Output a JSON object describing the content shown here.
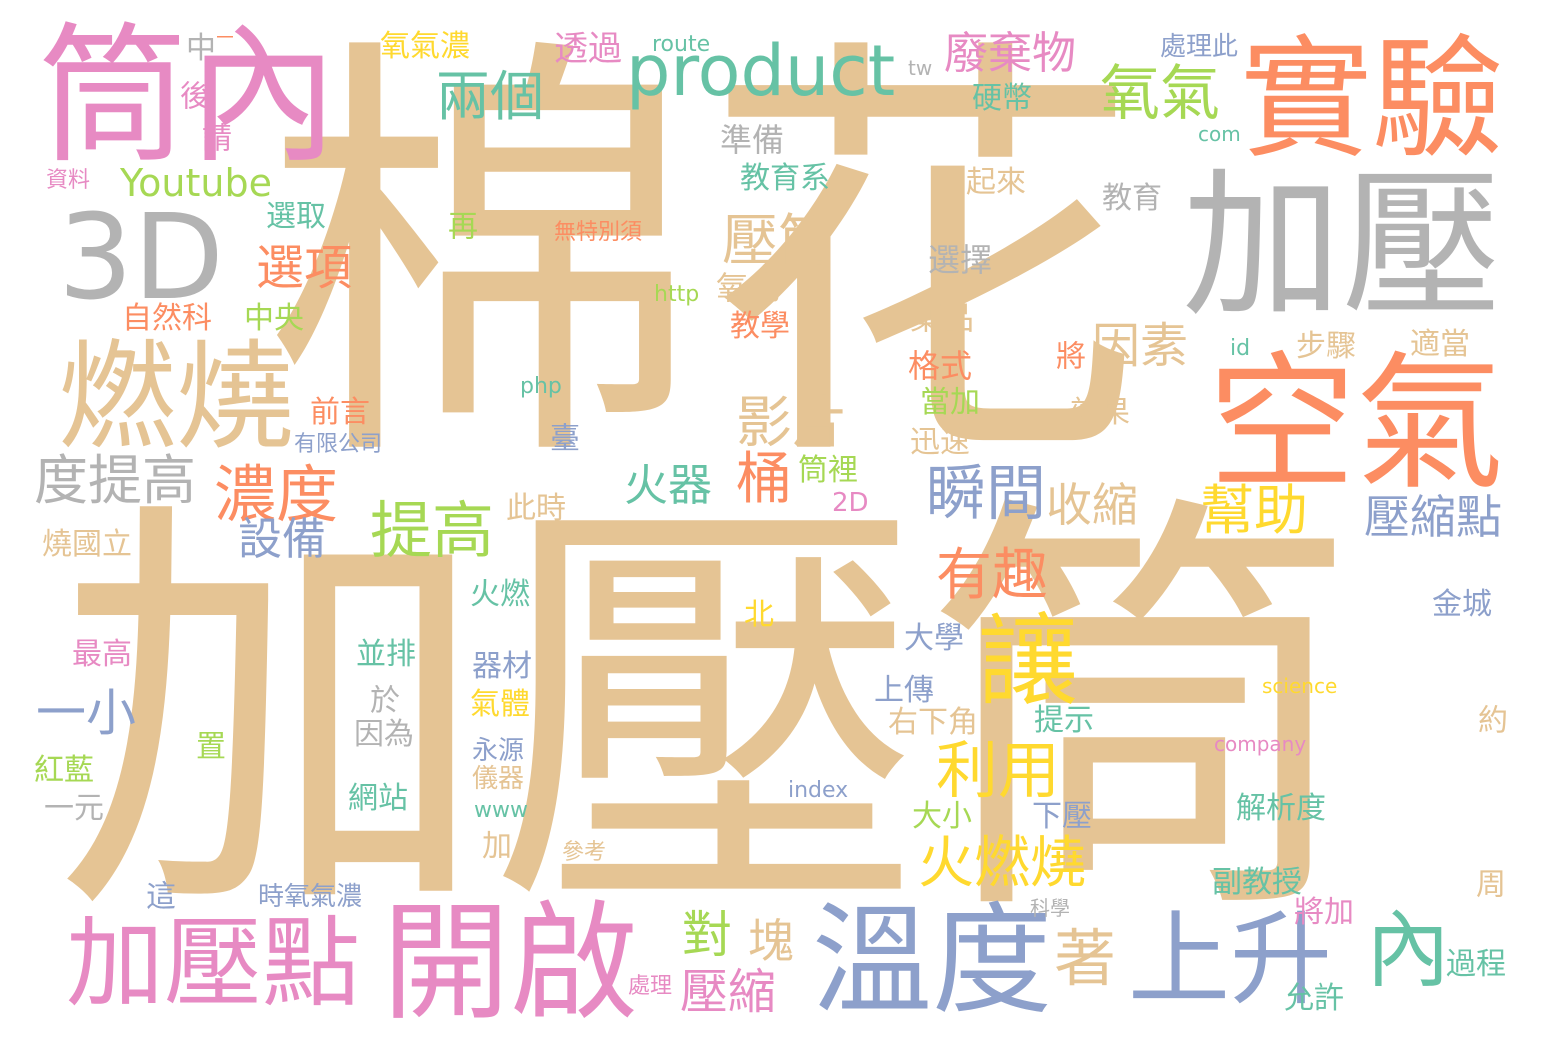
{
  "palette": {
    "tan": "#e5c494",
    "pink": "#e78ac3",
    "gray": "#b3b3b3",
    "orange": "#fc8d62",
    "green": "#66c2a5",
    "blue": "#8da0cb",
    "lime": "#a6d854",
    "yellow": "#ffd92f"
  },
  "words": [
    {
      "id": "w1",
      "text": "棉花",
      "color": "tan"
    },
    {
      "id": "w2",
      "text": "加壓筒",
      "color": "tan"
    },
    {
      "id": "w3",
      "text": "筒內",
      "color": "pink"
    },
    {
      "id": "w4",
      "text": "實驗",
      "color": "orange"
    },
    {
      "id": "w5",
      "text": "加壓",
      "color": "gray"
    },
    {
      "id": "w6",
      "text": "3D",
      "color": "gray"
    },
    {
      "id": "w7",
      "text": "燃燒",
      "color": "tan"
    },
    {
      "id": "w8",
      "text": "空氣",
      "color": "orange"
    },
    {
      "id": "w9",
      "text": "product",
      "color": "green"
    },
    {
      "id": "w10",
      "text": "開啟",
      "color": "pink"
    },
    {
      "id": "w11",
      "text": "溫度",
      "color": "blue"
    },
    {
      "id": "w12",
      "text": "加壓點",
      "color": "pink"
    },
    {
      "id": "w13",
      "text": "上升",
      "color": "blue"
    },
    {
      "id": "w14",
      "text": "內",
      "color": "green"
    },
    {
      "id": "w15",
      "text": "讓",
      "color": "yellow"
    },
    {
      "id": "w16",
      "text": "兩個",
      "color": "green"
    },
    {
      "id": "w17",
      "text": "氧氣",
      "color": "lime"
    },
    {
      "id": "w18",
      "text": "廢棄物",
      "color": "pink"
    },
    {
      "id": "w19",
      "text": "壓筒",
      "color": "tan"
    },
    {
      "id": "w20",
      "text": "Youtube",
      "color": "lime"
    },
    {
      "id": "w21",
      "text": "選項",
      "color": "orange"
    },
    {
      "id": "w22",
      "text": "因素",
      "color": "tan"
    },
    {
      "id": "w23",
      "text": "影片",
      "color": "tan"
    },
    {
      "id": "w24",
      "text": "度提高",
      "color": "gray"
    },
    {
      "id": "w25",
      "text": "濃度",
      "color": "orange"
    },
    {
      "id": "w26",
      "text": "提高",
      "color": "lime"
    },
    {
      "id": "w27",
      "text": "火器",
      "color": "green"
    },
    {
      "id": "w28",
      "text": "桶",
      "color": "orange"
    },
    {
      "id": "w29",
      "text": "瞬間",
      "color": "blue"
    },
    {
      "id": "w30",
      "text": "收縮",
      "color": "tan"
    },
    {
      "id": "w31",
      "text": "幫助",
      "color": "yellow"
    },
    {
      "id": "w32",
      "text": "壓縮點",
      "color": "blue"
    },
    {
      "id": "w33",
      "text": "有趣",
      "color": "orange"
    },
    {
      "id": "w34",
      "text": "設備",
      "color": "blue"
    },
    {
      "id": "w35",
      "text": "利用",
      "color": "yellow"
    },
    {
      "id": "w36",
      "text": "火燃燒",
      "color": "yellow"
    },
    {
      "id": "w37",
      "text": "一小",
      "color": "blue"
    },
    {
      "id": "w38",
      "text": "對",
      "color": "lime"
    },
    {
      "id": "w39",
      "text": "塊",
      "color": "tan"
    },
    {
      "id": "w40",
      "text": "著",
      "color": "tan"
    },
    {
      "id": "w41",
      "text": "壓縮",
      "color": "pink"
    },
    {
      "id": "w42",
      "text": "中",
      "color": "gray"
    },
    {
      "id": "w43",
      "text": "氧氣濃",
      "color": "yellow"
    },
    {
      "id": "w44",
      "text": "透過",
      "color": "pink"
    },
    {
      "id": "w45",
      "text": "route",
      "color": "green"
    },
    {
      "id": "w46",
      "text": "處理此",
      "color": "blue"
    },
    {
      "id": "w47",
      "text": "後",
      "color": "pink"
    },
    {
      "id": "w48",
      "text": "請",
      "color": "pink"
    },
    {
      "id": "w49",
      "text": "tw",
      "color": "gray"
    },
    {
      "id": "w50",
      "text": "硬幣",
      "color": "green"
    },
    {
      "id": "w51",
      "text": "com",
      "color": "green"
    },
    {
      "id": "w52",
      "text": "準備",
      "color": "gray"
    },
    {
      "id": "w53",
      "text": "資料",
      "color": "pink"
    },
    {
      "id": "w54",
      "text": "教育系",
      "color": "green"
    },
    {
      "id": "w55",
      "text": "起來",
      "color": "tan"
    },
    {
      "id": "w56",
      "text": "選取",
      "color": "green"
    },
    {
      "id": "w57",
      "text": "再",
      "color": "lime"
    },
    {
      "id": "w58",
      "text": "無特別須",
      "color": "orange"
    },
    {
      "id": "w59",
      "text": "教育",
      "color": "gray"
    },
    {
      "id": "w60",
      "text": "選擇",
      "color": "gray"
    },
    {
      "id": "w61",
      "text": "http",
      "color": "lime"
    },
    {
      "id": "w62",
      "text": "氧化",
      "color": "tan"
    },
    {
      "id": "w63",
      "text": "自然科",
      "color": "orange"
    },
    {
      "id": "w64",
      "text": "中央",
      "color": "lime"
    },
    {
      "id": "w65",
      "text": "藥品",
      "color": "tan"
    },
    {
      "id": "w66",
      "text": "教學",
      "color": "orange"
    },
    {
      "id": "w67",
      "text": "id",
      "color": "green"
    },
    {
      "id": "w68",
      "text": "步驟",
      "color": "tan"
    },
    {
      "id": "w69",
      "text": "適當",
      "color": "tan"
    },
    {
      "id": "w70",
      "text": "php",
      "color": "green"
    },
    {
      "id": "w71",
      "text": "將",
      "color": "orange"
    },
    {
      "id": "w72",
      "text": "格式",
      "color": "orange"
    },
    {
      "id": "w73",
      "text": "前言",
      "color": "orange"
    },
    {
      "id": "w74",
      "text": "當加",
      "color": "lime"
    },
    {
      "id": "w75",
      "text": "效果",
      "color": "tan"
    },
    {
      "id": "w76",
      "text": "臺",
      "color": "blue"
    },
    {
      "id": "w77",
      "text": "有限公司",
      "color": "blue"
    },
    {
      "id": "w78",
      "text": "迅速",
      "color": "tan"
    },
    {
      "id": "w79",
      "text": "筒裡",
      "color": "lime"
    },
    {
      "id": "w80",
      "text": "2D",
      "color": "pink"
    },
    {
      "id": "w81",
      "text": "此時",
      "color": "tan"
    },
    {
      "id": "w82",
      "text": "燒國立",
      "color": "tan"
    },
    {
      "id": "w83",
      "text": "火燃",
      "color": "green"
    },
    {
      "id": "w84",
      "text": "北",
      "color": "yellow"
    },
    {
      "id": "w85",
      "text": "金城",
      "color": "blue"
    },
    {
      "id": "w86",
      "text": "大學",
      "color": "blue"
    },
    {
      "id": "w87",
      "text": "最高",
      "color": "pink"
    },
    {
      "id": "w88",
      "text": "並排",
      "color": "green"
    },
    {
      "id": "w89",
      "text": "器材",
      "color": "blue"
    },
    {
      "id": "w90",
      "text": "於",
      "color": "gray"
    },
    {
      "id": "w91",
      "text": "氣體",
      "color": "yellow"
    },
    {
      "id": "w92",
      "text": "上傳",
      "color": "blue"
    },
    {
      "id": "w93",
      "text": "science",
      "color": "yellow"
    },
    {
      "id": "w94",
      "text": "提示",
      "color": "green"
    },
    {
      "id": "w95",
      "text": "右下角",
      "color": "tan"
    },
    {
      "id": "w96",
      "text": "約",
      "color": "tan"
    },
    {
      "id": "w97",
      "text": "因為",
      "color": "gray"
    },
    {
      "id": "w98",
      "text": "置",
      "color": "lime"
    },
    {
      "id": "w99",
      "text": "company",
      "color": "pink"
    },
    {
      "id": "w100",
      "text": "紅藍",
      "color": "lime"
    },
    {
      "id": "w101",
      "text": "永源",
      "color": "blue"
    },
    {
      "id": "w102",
      "text": "儀器",
      "color": "tan"
    },
    {
      "id": "w103",
      "text": "index",
      "color": "blue"
    },
    {
      "id": "w104",
      "text": "網站",
      "color": "green"
    },
    {
      "id": "w105",
      "text": "一元",
      "color": "gray"
    },
    {
      "id": "w106",
      "text": "www",
      "color": "green"
    },
    {
      "id": "w107",
      "text": "大小",
      "color": "lime"
    },
    {
      "id": "w108",
      "text": "下壓",
      "color": "blue"
    },
    {
      "id": "w109",
      "text": "解析度",
      "color": "green"
    },
    {
      "id": "w110",
      "text": "加上",
      "color": "tan"
    },
    {
      "id": "w111",
      "text": "參考",
      "color": "tan"
    },
    {
      "id": "w112",
      "text": "副教授",
      "color": "green"
    },
    {
      "id": "w113",
      "text": "這",
      "color": "blue"
    },
    {
      "id": "w114",
      "text": "時氧氣濃",
      "color": "blue"
    },
    {
      "id": "w115",
      "text": "周",
      "color": "tan"
    },
    {
      "id": "w116",
      "text": "科學",
      "color": "gray"
    },
    {
      "id": "w117",
      "text": "將加",
      "color": "pink"
    },
    {
      "id": "w118",
      "text": "過程",
      "color": "green"
    },
    {
      "id": "w119",
      "text": "處理",
      "color": "pink"
    },
    {
      "id": "w120",
      "text": "允許",
      "color": "green"
    },
    {
      "id": "w121",
      "text": "－",
      "color": "orange"
    }
  ]
}
